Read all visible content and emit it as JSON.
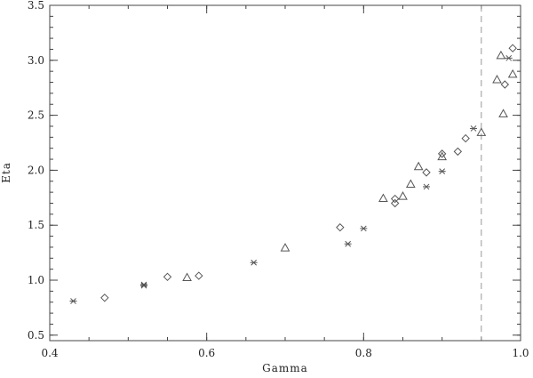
{
  "chart_data": {
    "type": "scatter",
    "title": "",
    "xlabel": "Gamma",
    "ylabel": "Eta",
    "xlim": [
      0.4,
      1.0
    ],
    "ylim": [
      0.45,
      3.5
    ],
    "x_ticks": [
      "0.4",
      "0.6",
      "0.8",
      "1.0"
    ],
    "y_ticks": [
      "0.5",
      "1.0",
      "1.5",
      "2.0",
      "2.5",
      "3.0",
      "3.5"
    ],
    "grid": false,
    "legend": "none",
    "vertical_reference_line": {
      "x": 0.95,
      "style": "dashed"
    },
    "series": [
      {
        "marker": "asterisk",
        "points": [
          [
            0.43,
            0.81
          ],
          [
            0.52,
            0.95
          ],
          [
            0.52,
            0.96
          ],
          [
            0.66,
            1.16
          ],
          [
            0.78,
            1.33
          ],
          [
            0.8,
            1.47
          ],
          [
            0.88,
            1.85
          ],
          [
            0.9,
            1.99
          ],
          [
            0.94,
            2.38
          ],
          [
            0.985,
            3.02
          ]
        ]
      },
      {
        "marker": "diamond",
        "points": [
          [
            0.47,
            0.84
          ],
          [
            0.55,
            1.03
          ],
          [
            0.59,
            1.04
          ],
          [
            0.77,
            1.48
          ],
          [
            0.84,
            1.7
          ],
          [
            0.84,
            1.74
          ],
          [
            0.88,
            1.98
          ],
          [
            0.9,
            2.15
          ],
          [
            0.92,
            2.17
          ],
          [
            0.93,
            2.29
          ],
          [
            0.98,
            2.78
          ],
          [
            0.99,
            3.11
          ]
        ]
      },
      {
        "marker": "triangle",
        "points": [
          [
            0.575,
            1.02
          ],
          [
            0.7,
            1.29
          ],
          [
            0.825,
            1.74
          ],
          [
            0.85,
            1.76
          ],
          [
            0.86,
            1.87
          ],
          [
            0.87,
            2.03
          ],
          [
            0.9,
            2.12
          ],
          [
            0.95,
            2.34
          ],
          [
            0.97,
            2.82
          ],
          [
            0.975,
            3.04
          ],
          [
            0.978,
            2.51
          ],
          [
            0.99,
            2.87
          ]
        ]
      }
    ]
  }
}
